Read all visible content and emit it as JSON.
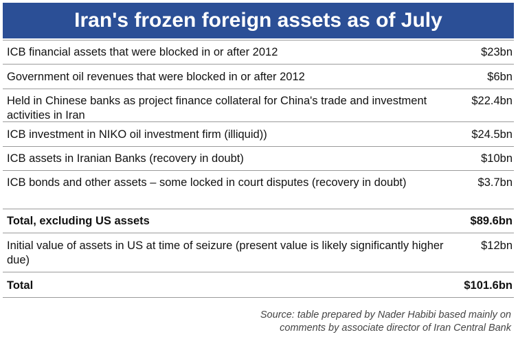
{
  "title": "Iran's frozen foreign assets as of July",
  "chart_data": {
    "type": "table",
    "title": "Iran's frozen foreign assets as of July",
    "rows": [
      {
        "label": "ICB financial assets that were blocked in or after 2012",
        "value": "$23bn",
        "total": false
      },
      {
        "label": "Government oil revenues that were blocked in or after 2012",
        "value": "$6bn",
        "total": false
      },
      {
        "label": "Held in Chinese banks as project finance collateral for China's trade and investment activities in Iran",
        "value": "$22.4bn",
        "total": false
      },
      {
        "label": "ICB investment in NIKO oil investment firm (illiquid))",
        "value": "$24.5bn",
        "total": false
      },
      {
        "label": "ICB assets in Iranian Banks (recovery in doubt)",
        "value": "$10bn",
        "total": false
      },
      {
        "label": "ICB bonds and other assets – some locked in court disputes (recovery in doubt)",
        "value": "$3.7bn",
        "total": false
      },
      {
        "label": "Total, excluding US assets",
        "value": "$89.6bn",
        "total": true
      },
      {
        "label": "Initial value of assets in US at time of seizure (present value is likely significantly higher due)",
        "value": "$12bn",
        "total": false
      },
      {
        "label": "Total",
        "value": "$101.6bn",
        "total": true
      }
    ],
    "source": "Source: table prepared by Nader Habibi based mainly on comments by associate director of Iran Central Bank"
  },
  "colors": {
    "title_background": "#2b4f96",
    "title_text": "#ffffff",
    "rule": "#9a9a9a"
  }
}
